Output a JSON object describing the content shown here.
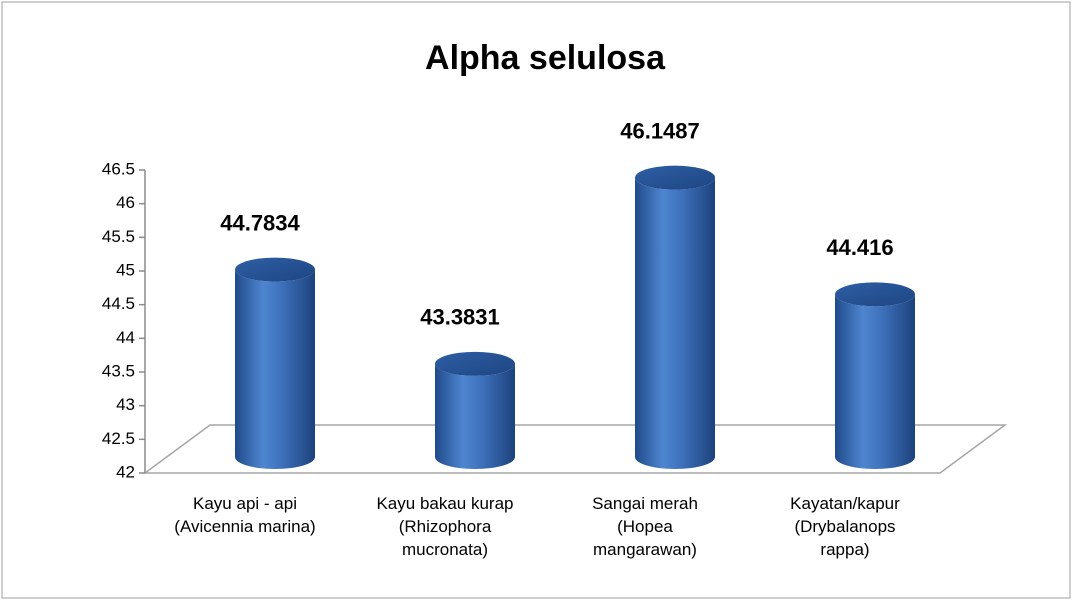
{
  "chart_data": {
    "type": "bar",
    "title": "Alpha selulosa",
    "categories": [
      "Kayu api - api (Avicennia marina)",
      "Kayu bakau kurap (Rhizophora mucronata)",
      "Sangai merah (Hopea mangarawan)",
      "Kayatan/kapur (Drybalanops rappa)"
    ],
    "values": [
      44.7834,
      43.3831,
      46.1487,
      44.416
    ],
    "color": "#3b6cb4",
    "ylim": [
      42,
      46.5
    ],
    "yticks": [
      42,
      42.5,
      43,
      43.5,
      44,
      44.5,
      45,
      45.5,
      46,
      46.5
    ],
    "grid": false
  }
}
